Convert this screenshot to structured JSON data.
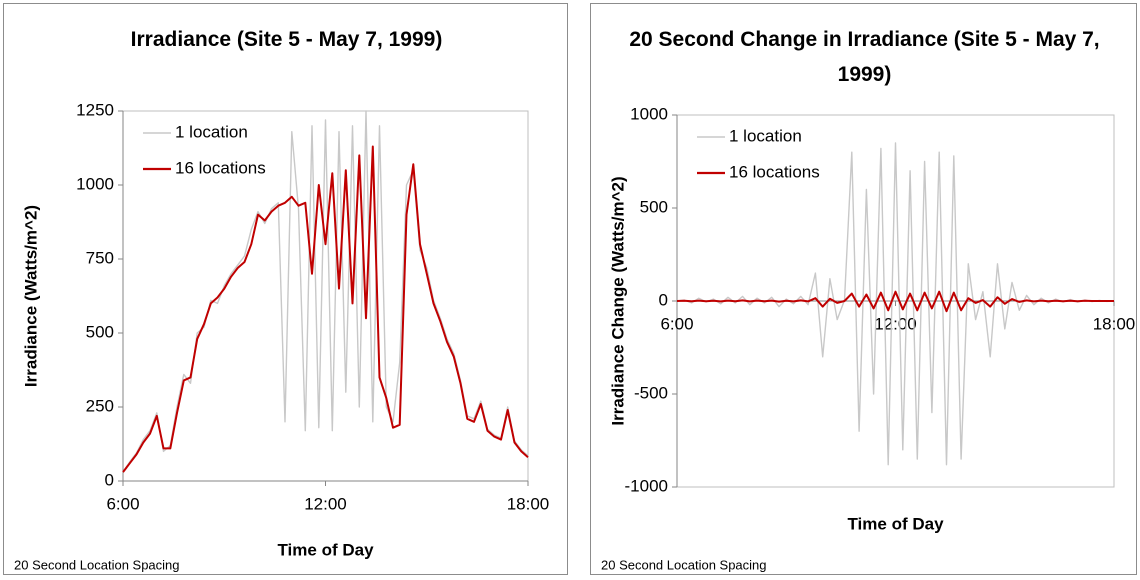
{
  "chart_data": [
    {
      "type": "line",
      "title": "Irradiance (Site 5 - May 7, 1999)",
      "x_label": "Time of Day",
      "y_label": "Irradiance (Watts/m^2)",
      "footnote": "20 Second Location Spacing",
      "x": [
        6,
        6.2,
        6.4,
        6.6,
        6.8,
        7,
        7.2,
        7.4,
        7.6,
        7.8,
        8,
        8.2,
        8.4,
        8.6,
        8.8,
        9,
        9.2,
        9.4,
        9.6,
        9.8,
        10,
        10.2,
        10.4,
        10.6,
        10.8,
        11,
        11.2,
        11.4,
        11.6,
        11.8,
        12,
        12.2,
        12.4,
        12.6,
        12.8,
        13,
        13.2,
        13.4,
        13.6,
        13.8,
        14,
        14.2,
        14.4,
        14.6,
        14.8,
        15,
        15.2,
        15.4,
        15.6,
        15.8,
        16,
        16.2,
        16.4,
        16.6,
        16.8,
        17,
        17.2,
        17.4,
        17.6,
        17.8,
        18
      ],
      "series": [
        {
          "name": "1 location",
          "color": "#c8c8c8",
          "values": [
            30,
            65,
            95,
            140,
            170,
            230,
            100,
            120,
            250,
            360,
            330,
            500,
            520,
            610,
            600,
            660,
            700,
            730,
            760,
            850,
            910,
            870,
            920,
            940,
            200,
            1180,
            920,
            170,
            1200,
            180,
            1220,
            170,
            1180,
            300,
            1200,
            250,
            1250,
            200,
            1200,
            250,
            200,
            400,
            1000,
            1050,
            780,
            720,
            610,
            550,
            480,
            430,
            340,
            220,
            210,
            270,
            175,
            155,
            145,
            250,
            135,
            105,
            85
          ]
        },
        {
          "name": "16 locations",
          "color": "#c00000",
          "values": [
            30,
            60,
            90,
            130,
            160,
            220,
            110,
            110,
            230,
            340,
            350,
            480,
            530,
            600,
            620,
            650,
            690,
            720,
            740,
            800,
            900,
            880,
            910,
            930,
            940,
            960,
            930,
            940,
            700,
            1000,
            800,
            1040,
            650,
            1050,
            600,
            1100,
            550,
            1130,
            350,
            280,
            180,
            190,
            900,
            1070,
            800,
            700,
            600,
            540,
            470,
            420,
            330,
            210,
            200,
            260,
            170,
            150,
            140,
            240,
            130,
            100,
            80
          ]
        }
      ],
      "xlim": [
        6,
        18
      ],
      "xticks": [
        {
          "value": 6,
          "label": "6:00"
        },
        {
          "value": 12,
          "label": "12:00"
        },
        {
          "value": 18,
          "label": "18:00"
        }
      ],
      "ylim": [
        0,
        1250
      ],
      "yticks": [
        0,
        250,
        500,
        750,
        1000,
        1250
      ]
    },
    {
      "type": "line",
      "title": "20 Second Change in Irradiance (Site 5 - May 7, 1999)",
      "x_label": "Time of Day",
      "y_label": "Irradiance Change (Watts/m^2)",
      "footnote": "20 Second Location Spacing",
      "x": [
        6,
        6.2,
        6.4,
        6.6,
        6.8,
        7,
        7.2,
        7.4,
        7.6,
        7.8,
        8,
        8.2,
        8.4,
        8.6,
        8.8,
        9,
        9.2,
        9.4,
        9.6,
        9.8,
        10,
        10.2,
        10.4,
        10.6,
        10.8,
        11,
        11.2,
        11.4,
        11.6,
        11.8,
        12,
        12.2,
        12.4,
        12.6,
        12.8,
        13,
        13.2,
        13.4,
        13.6,
        13.8,
        14,
        14.2,
        14.4,
        14.6,
        14.8,
        15,
        15.2,
        15.4,
        15.6,
        15.8,
        16,
        16.2,
        16.4,
        16.6,
        16.8,
        17,
        17.2,
        17.4,
        17.6,
        17.8,
        18
      ],
      "series": [
        {
          "name": "1 location",
          "color": "#c8c8c8",
          "values": [
            0,
            5,
            -10,
            15,
            -5,
            10,
            -15,
            20,
            -10,
            25,
            -20,
            15,
            -10,
            20,
            -30,
            10,
            -15,
            25,
            -20,
            150,
            -300,
            120,
            -100,
            5,
            800,
            -700,
            600,
            -500,
            820,
            -880,
            850,
            -800,
            700,
            -850,
            750,
            -600,
            800,
            -880,
            780,
            -850,
            200,
            -100,
            50,
            -300,
            200,
            -150,
            100,
            -50,
            30,
            -20,
            15,
            -10,
            10,
            -5,
            8,
            -5,
            5,
            -3,
            3,
            -2,
            0
          ]
        },
        {
          "name": "16 locations",
          "color": "#c00000",
          "values": [
            0,
            1,
            -1,
            2,
            -1,
            1,
            -2,
            2,
            -1,
            3,
            -2,
            2,
            -1,
            2,
            -3,
            1,
            -2,
            3,
            -2,
            15,
            -30,
            12,
            -10,
            0,
            40,
            -30,
            35,
            -40,
            45,
            -50,
            50,
            -45,
            40,
            -50,
            45,
            -40,
            50,
            -55,
            45,
            -50,
            15,
            -10,
            5,
            -30,
            20,
            -15,
            10,
            -5,
            3,
            -2,
            2,
            -1,
            1,
            -1,
            1,
            -1,
            1,
            0,
            0,
            0,
            0
          ]
        }
      ],
      "xlim": [
        6,
        18
      ],
      "xticks": [
        {
          "value": 6,
          "label": "6:00"
        },
        {
          "value": 12,
          "label": "12:00"
        },
        {
          "value": 18,
          "label": "18:00"
        }
      ],
      "ylim": [
        -1000,
        1000
      ],
      "yticks": [
        -1000,
        -500,
        0,
        500,
        1000
      ]
    }
  ]
}
